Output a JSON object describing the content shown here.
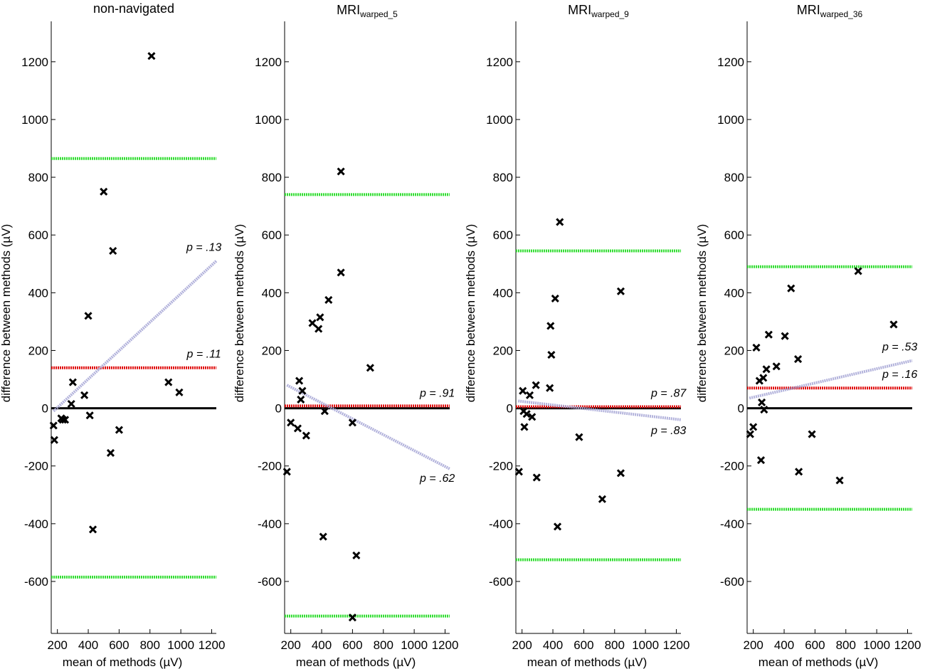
{
  "figure": {
    "x_label": "mean of methods (µV)",
    "y_label": "difference between methods (µV)"
  },
  "colors": {
    "zero_line": "#000000",
    "mean_line": "#e01010",
    "loa_line": "#33dd33",
    "regression_line": "#aaaad8",
    "marker": "#000000"
  },
  "chart_data": [
    {
      "type": "scatter",
      "title": "non-navigated",
      "title_main": "non-navigated",
      "title_sub": "",
      "xlim": [
        160,
        1230
      ],
      "ylim": [
        -780,
        1340
      ],
      "x_ticks": [
        200,
        400,
        600,
        800,
        1000,
        1200
      ],
      "y_ticks": [
        -600,
        -400,
        -200,
        0,
        200,
        400,
        600,
        800,
        1000,
        1200
      ],
      "points": [
        [
          175,
          -60
        ],
        [
          180,
          -110
        ],
        [
          225,
          -35
        ],
        [
          235,
          -40
        ],
        [
          250,
          -40
        ],
        [
          290,
          15
        ],
        [
          300,
          90
        ],
        [
          375,
          45
        ],
        [
          400,
          320
        ],
        [
          410,
          -25
        ],
        [
          430,
          -420
        ],
        [
          500,
          750
        ],
        [
          545,
          -155
        ],
        [
          560,
          545
        ],
        [
          600,
          -75
        ],
        [
          810,
          1220
        ],
        [
          920,
          90
        ],
        [
          990,
          55
        ]
      ],
      "mean_diff": 140,
      "upper_loa": 865,
      "lower_loa": -585,
      "regression": {
        "x": [
          175,
          1230
        ],
        "y": [
          -10,
          510
        ]
      },
      "p_labels": [
        {
          "text": "p = .13",
          "x": 1150,
          "y": 545
        },
        {
          "text": "p = .11",
          "x": 1150,
          "y": 175
        }
      ]
    },
    {
      "type": "scatter",
      "title": "MRIwarped_5",
      "title_main": "MRI",
      "title_sub": "warped_5",
      "xlim": [
        160,
        1230
      ],
      "ylim": [
        -780,
        1340
      ],
      "x_ticks": [
        200,
        400,
        600,
        800,
        1000,
        1200
      ],
      "y_ticks": [
        -600,
        -400,
        -200,
        0,
        200,
        400,
        600,
        800,
        1000,
        1200
      ],
      "points": [
        [
          175,
          -220
        ],
        [
          200,
          -50
        ],
        [
          245,
          -70
        ],
        [
          255,
          95
        ],
        [
          265,
          30
        ],
        [
          275,
          60
        ],
        [
          300,
          -95
        ],
        [
          340,
          295
        ],
        [
          380,
          275
        ],
        [
          390,
          315
        ],
        [
          410,
          -445
        ],
        [
          420,
          -10
        ],
        [
          445,
          375
        ],
        [
          525,
          820
        ],
        [
          525,
          470
        ],
        [
          600,
          -50
        ],
        [
          600,
          -725
        ],
        [
          625,
          -510
        ],
        [
          715,
          140
        ]
      ],
      "mean_diff": 8,
      "upper_loa": 740,
      "lower_loa": -720,
      "regression": {
        "x": [
          175,
          1230
        ],
        "y": [
          80,
          -210
        ]
      },
      "p_labels": [
        {
          "text": "p = .91",
          "x": 1150,
          "y": 40
        },
        {
          "text": "p = .62",
          "x": 1150,
          "y": -255
        }
      ]
    },
    {
      "type": "scatter",
      "title": "MRIwarped_9",
      "title_main": "MRI",
      "title_sub": "warped_9",
      "xlim": [
        160,
        1230
      ],
      "ylim": [
        -780,
        1340
      ],
      "x_ticks": [
        200,
        400,
        600,
        800,
        1000,
        1200
      ],
      "y_ticks": [
        -600,
        -400,
        -200,
        0,
        200,
        400,
        600,
        800,
        1000,
        1200
      ],
      "points": [
        [
          180,
          -220
        ],
        [
          205,
          60
        ],
        [
          210,
          -10
        ],
        [
          215,
          -65
        ],
        [
          230,
          -20
        ],
        [
          250,
          45
        ],
        [
          265,
          -30
        ],
        [
          290,
          80
        ],
        [
          295,
          -240
        ],
        [
          380,
          70
        ],
        [
          385,
          285
        ],
        [
          390,
          185
        ],
        [
          415,
          380
        ],
        [
          430,
          -410
        ],
        [
          445,
          645
        ],
        [
          570,
          -100
        ],
        [
          720,
          -315
        ],
        [
          840,
          405
        ],
        [
          840,
          -225
        ]
      ],
      "mean_diff": 5,
      "upper_loa": 545,
      "lower_loa": -525,
      "regression": {
        "x": [
          175,
          1230
        ],
        "y": [
          25,
          -40
        ]
      },
      "p_labels": [
        {
          "text": "p = .87",
          "x": 1150,
          "y": 40
        },
        {
          "text": "p = .83",
          "x": 1150,
          "y": -90
        }
      ]
    },
    {
      "type": "scatter",
      "title": "MRIwarped_36",
      "title_main": "MRI",
      "title_sub": "warped_36",
      "xlim": [
        160,
        1230
      ],
      "ylim": [
        -780,
        1340
      ],
      "x_ticks": [
        200,
        400,
        600,
        800,
        1000,
        1200
      ],
      "y_ticks": [
        -600,
        -400,
        -200,
        0,
        200,
        400,
        600,
        800,
        1000,
        1200
      ],
      "points": [
        [
          180,
          -90
        ],
        [
          200,
          -65
        ],
        [
          220,
          210
        ],
        [
          240,
          95
        ],
        [
          250,
          -180
        ],
        [
          255,
          20
        ],
        [
          265,
          105
        ],
        [
          270,
          -5
        ],
        [
          285,
          135
        ],
        [
          300,
          255
        ],
        [
          350,
          145
        ],
        [
          405,
          250
        ],
        [
          445,
          415
        ],
        [
          490,
          170
        ],
        [
          495,
          -220
        ],
        [
          580,
          -90
        ],
        [
          760,
          -250
        ],
        [
          880,
          475
        ],
        [
          1110,
          290
        ]
      ],
      "mean_diff": 70,
      "upper_loa": 490,
      "lower_loa": -350,
      "regression": {
        "x": [
          175,
          1230
        ],
        "y": [
          35,
          165
        ]
      },
      "p_labels": [
        {
          "text": "p = .53",
          "x": 1150,
          "y": 200
        },
        {
          "text": "p = .16",
          "x": 1150,
          "y": 105
        }
      ]
    }
  ]
}
